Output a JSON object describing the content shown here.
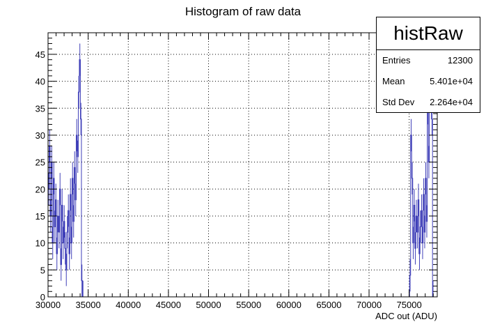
{
  "chart_data": {
    "type": "histogram",
    "title": "Histogram of raw data",
    "xlabel": "ADC out (ADU)",
    "ylabel": "",
    "xlim": [
      30000,
      78500
    ],
    "ylim": [
      0,
      49
    ],
    "grid": true,
    "xticks": [
      30000,
      35000,
      40000,
      45000,
      50000,
      55000,
      60000,
      65000,
      70000,
      75000
    ],
    "xtick_labels": [
      "30000",
      "35000",
      "40000",
      "45000",
      "50000",
      "55000",
      "60000",
      "65000",
      "70000",
      "75000"
    ],
    "yticks": [
      0,
      5,
      10,
      15,
      20,
      25,
      30,
      35,
      40,
      45
    ],
    "ytick_labels": [
      "0",
      "5",
      "10",
      "15",
      "20",
      "25",
      "30",
      "35",
      "40",
      "45"
    ],
    "series_color": "#3f3fb8",
    "bin_width": 130,
    "clusters": [
      {
        "x_start": 30000,
        "values": [
          20,
          28,
          15,
          25,
          10,
          22,
          13,
          18,
          8,
          15,
          12,
          20,
          6,
          17,
          10,
          14,
          9,
          5,
          12,
          16,
          8,
          19,
          10,
          22,
          14,
          24,
          18,
          30,
          26,
          38,
          44,
          33,
          3,
          0
        ]
      },
      {
        "x_start": 75050,
        "values": [
          4,
          30,
          22,
          10,
          17,
          9,
          15,
          12,
          18,
          8,
          13,
          16,
          10,
          19,
          12,
          22,
          14,
          35,
          25,
          38,
          42,
          33,
          0
        ]
      }
    ]
  },
  "stats_box": {
    "name": "histRaw",
    "entries_label": "Entries",
    "entries_value": "12300",
    "mean_label": "Mean",
    "mean_value": "5.401e+04",
    "std_label": "Std Dev",
    "std_value": "2.264e+04"
  }
}
